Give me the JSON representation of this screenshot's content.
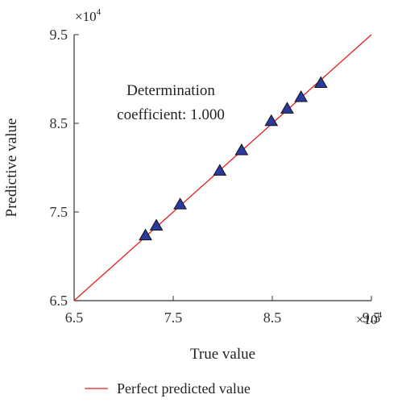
{
  "chart_data": {
    "type": "scatter",
    "xlabel": "True value",
    "ylabel": "Predictive value",
    "x_multiplier": "×10",
    "y_multiplier": "×10",
    "exponent": "4",
    "xlim": [
      6.5,
      9.5
    ],
    "ylim": [
      6.5,
      9.5
    ],
    "x_ticks": [
      6.5,
      7.5,
      8.5,
      9.5
    ],
    "y_ticks": [
      6.5,
      7.5,
      8.5,
      9.5
    ],
    "x_tick_labels": [
      "6.5",
      "7.5",
      "8.5",
      "9.5"
    ],
    "y_tick_labels": [
      "6.5",
      "7.5",
      "8.5",
      "9.5"
    ],
    "annotation": [
      "Determination",
      "coefficient: 1.000"
    ],
    "grid": false,
    "legend": {
      "placement": "bottom",
      "entries": [
        "Perfect predicted value"
      ]
    },
    "series": [
      {
        "name": "",
        "marker": "triangle",
        "color": "#2b3a9e",
        "points": [
          [
            7.22,
            7.23
          ],
          [
            7.33,
            7.34
          ],
          [
            7.57,
            7.58
          ],
          [
            7.97,
            7.96
          ],
          [
            8.19,
            8.19
          ],
          [
            8.49,
            8.52
          ],
          [
            8.65,
            8.66
          ],
          [
            8.79,
            8.79
          ],
          [
            8.99,
            8.95
          ]
        ]
      },
      {
        "name": "Perfect predicted value",
        "type": "line",
        "color": "#e02020",
        "points": [
          [
            6.5,
            6.5
          ],
          [
            9.5,
            9.5
          ]
        ]
      }
    ]
  }
}
